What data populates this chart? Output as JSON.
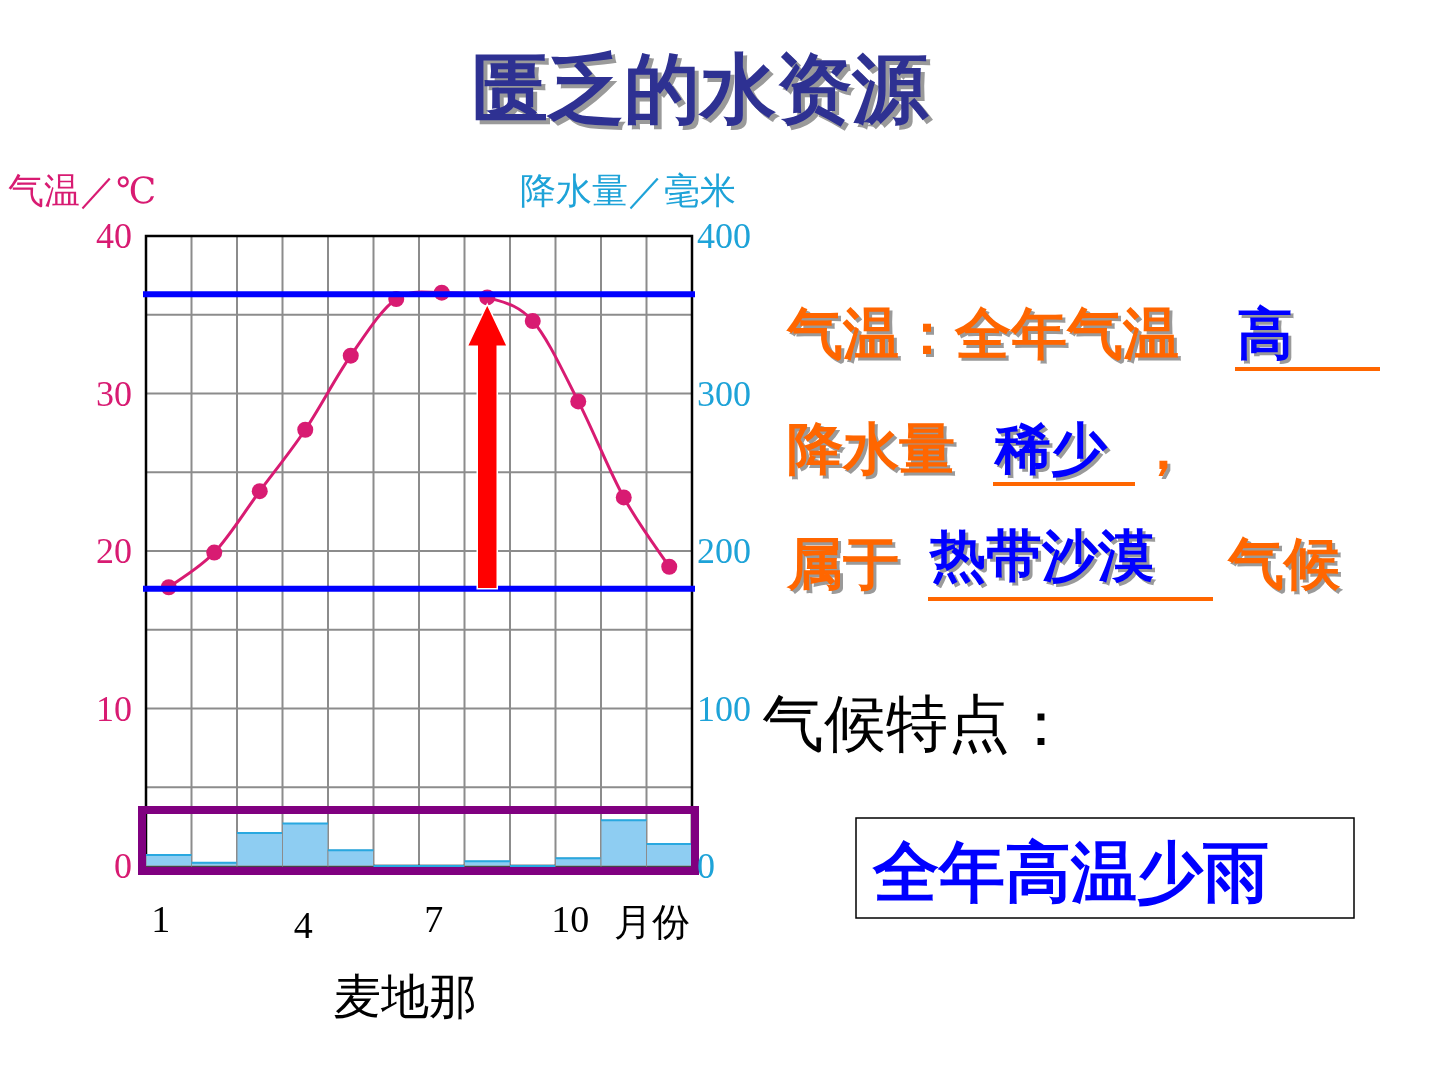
{
  "chart_data": {
    "type": "line",
    "title": "匮乏的水资源",
    "subtitle": "麦地那",
    "xlabel": "月份",
    "ylabel": "气温／℃",
    "y2label": "降水量／毫米",
    "categories": [
      "1",
      null,
      null,
      "4",
      null,
      null,
      "7",
      null,
      null,
      "10",
      null,
      null
    ],
    "series": [
      {
        "color": "#d81b72",
        "marker": "circle",
        "values": [
          17.7,
          19.9,
          23.8,
          27.7,
          32.4,
          36.0,
          36.4,
          36.1,
          34.6,
          29.5,
          23.4,
          19.0
        ]
      },
      {
        "type": "bar",
        "axis": "y2",
        "color": "#8ecdf2",
        "values": [
          7,
          2,
          21,
          27,
          10,
          0,
          0,
          3,
          0,
          5,
          29,
          14
        ]
      }
    ],
    "ylim": [
      0,
      40
    ],
    "yticks": [
      0,
      {
        "value": 5,
        "label": null
      },
      10,
      {
        "value": 15,
        "label": null
      },
      20,
      {
        "value": 25,
        "label": null
      },
      30,
      {
        "value": 35,
        "label": null
      },
      40
    ],
    "y2lim": [
      0,
      400
    ],
    "y2ticks": [
      0,
      100,
      200,
      300,
      400
    ],
    "grid": true,
    "ref_lines": [
      {
        "axis": "y",
        "value": 36.3,
        "color": "#0000ff"
      },
      {
        "axis": "y",
        "value": 17.6,
        "color": "#0000ff"
      }
    ],
    "annotations": [
      "气温：全年气温",
      "高",
      "降水量",
      "稀少",
      "，",
      "属于",
      "热带沙漠",
      "气候",
      "气候特点：",
      "全年高温少雨"
    ]
  }
}
